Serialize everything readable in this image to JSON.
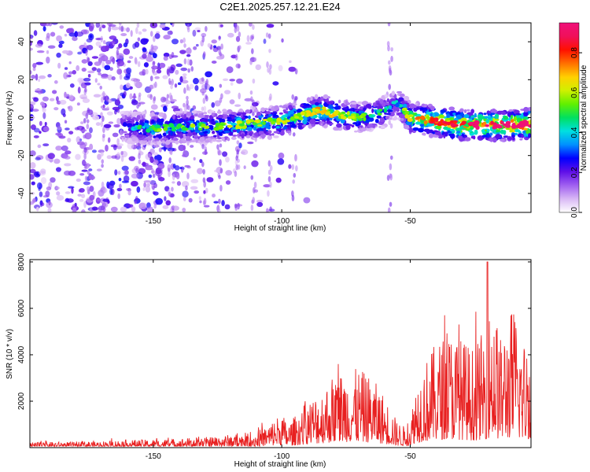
{
  "figure": {
    "title": "C2E1.2025.257.12.21.E24",
    "background": "#ffffff"
  },
  "chart_data": [
    {
      "id": "spectrogram",
      "type": "heatmap",
      "title": "",
      "xlabel": "Height of straight line (km)",
      "ylabel": "Frequency (Hz)",
      "xlim": [
        -198,
        -3
      ],
      "ylim": [
        -50,
        50
      ],
      "xticks": [
        -150,
        -100,
        -50
      ],
      "yticks": [
        -40,
        -20,
        0,
        20,
        40
      ],
      "colorbar": {
        "label": "Normalized spectral amplitude",
        "range": [
          0,
          0.95
        ],
        "ticks": [
          0,
          0.2,
          0.4,
          0.6,
          0.8
        ],
        "colormap": [
          "#ffffff",
          "#d9b8f5",
          "#a060f0",
          "#6010e8",
          "#0000ff",
          "#0090ff",
          "#00e0e0",
          "#00e060",
          "#60f000",
          "#d0f000",
          "#ffd000",
          "#ff7000",
          "#ff1000",
          "#f0105a",
          "#f0107a"
        ]
      },
      "ridge": {
        "description": "frequency centroid of the main signal band",
        "x": [
          -160,
          -150,
          -140,
          -130,
          -120,
          -110,
          -100,
          -90,
          -85,
          -80,
          -70,
          -60,
          -55,
          -50,
          -45,
          -40,
          -30,
          -20,
          -10,
          -3
        ],
        "y": [
          -5,
          -6,
          -5,
          -5,
          -4,
          -3,
          -2,
          2,
          4,
          2,
          0,
          3,
          8,
          0,
          -1,
          -2,
          -4,
          -4,
          -4,
          -3
        ],
        "amplitude": [
          0.3,
          0.45,
          0.45,
          0.45,
          0.5,
          0.5,
          0.5,
          0.55,
          0.6,
          0.55,
          0.45,
          0.4,
          0.3,
          0.6,
          0.7,
          0.75,
          0.8,
          0.85,
          0.9,
          0.95
        ]
      }
    },
    {
      "id": "snr",
      "type": "line",
      "title": "",
      "xlabel": "Height of straight line (km)",
      "ylabel": "SNR (10 * v/v)",
      "xlim": [
        -198,
        -3
      ],
      "ylim": [
        0,
        8100
      ],
      "xticks": [
        -150,
        -100,
        -50
      ],
      "yticks": [
        2000,
        4000,
        6000,
        8000
      ],
      "color": "#e82020",
      "series": [
        {
          "name": "SNR",
          "envelope_x": [
            -198,
            -170,
            -160,
            -150,
            -140,
            -130,
            -120,
            -110,
            -105,
            -100,
            -98,
            -95,
            -90,
            -85,
            -80,
            -75,
            -70,
            -65,
            -60,
            -55,
            -52,
            -50,
            -48,
            -45,
            -40,
            -35,
            -30,
            -25,
            -20,
            -18,
            -15,
            -10,
            -5,
            -3
          ],
          "envelope_y": [
            200,
            250,
            300,
            300,
            350,
            400,
            500,
            600,
            900,
            1400,
            900,
            1200,
            1800,
            2200,
            2800,
            3000,
            3000,
            2700,
            2000,
            1000,
            800,
            1000,
            2500,
            3200,
            4000,
            4500,
            4200,
            3800,
            4800,
            6000,
            4200,
            5500,
            4000,
            5000
          ],
          "peak_x": -20,
          "peak_y": 8000
        }
      ]
    }
  ]
}
